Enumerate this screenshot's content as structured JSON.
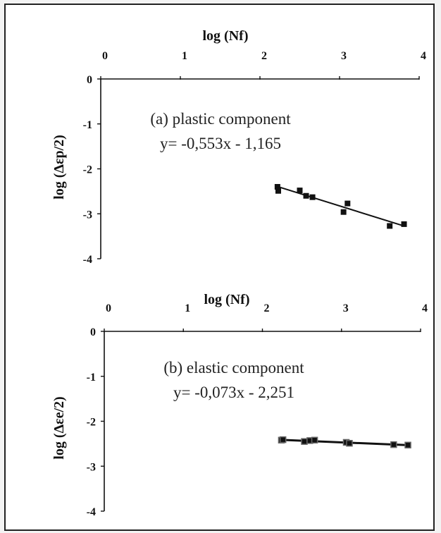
{
  "chart_data": [
    {
      "type": "scatter",
      "xlabel": "log (Nf)",
      "ylabel": "log (Δεp/2)",
      "xlim": [
        0,
        4
      ],
      "ylim": [
        -4,
        0
      ],
      "x_ticks": [
        "0",
        "1",
        "2",
        "3",
        "4"
      ],
      "y_ticks": [
        "0",
        "-1",
        "-2",
        "-3",
        "-4"
      ],
      "annotation_title": "(a) plastic component",
      "annotation_equation": "y= -0,553x - 1,165",
      "series": [
        {
          "x": [
            2.22,
            2.23,
            2.5,
            2.58,
            2.66,
            3.05,
            3.1,
            3.63,
            3.81
          ],
          "y": [
            -2.4,
            -2.49,
            -2.48,
            -2.6,
            -2.63,
            -2.96,
            -2.77,
            -3.27,
            -3.23
          ]
        }
      ],
      "trendline": {
        "slope": -0.553,
        "intercept": -1.165,
        "x_range": [
          2.22,
          3.81
        ]
      },
      "marker_color": "#111111"
    },
    {
      "type": "scatter",
      "xlabel": "log (Nf)",
      "ylabel": "log (Δεe/2)",
      "xlim": [
        0,
        4
      ],
      "ylim": [
        -4,
        0
      ],
      "x_ticks": [
        "0",
        "1",
        "2",
        "3",
        "4"
      ],
      "y_ticks": [
        "0",
        "-1",
        "-2",
        "-3",
        "-4"
      ],
      "annotation_title": "(b) elastic component",
      "annotation_equation": "y= -0,073x - 2,251",
      "series": [
        {
          "x": [
            2.24,
            2.26,
            2.53,
            2.6,
            2.66,
            3.06,
            3.1,
            3.66,
            3.84
          ],
          "y": [
            -2.42,
            -2.41,
            -2.45,
            -2.43,
            -2.42,
            -2.47,
            -2.49,
            -2.52,
            -2.53
          ]
        }
      ],
      "trendline": {
        "slope": -0.073,
        "intercept": -2.251,
        "x_range": [
          2.24,
          3.84
        ]
      },
      "marker_color": "#111111"
    }
  ]
}
